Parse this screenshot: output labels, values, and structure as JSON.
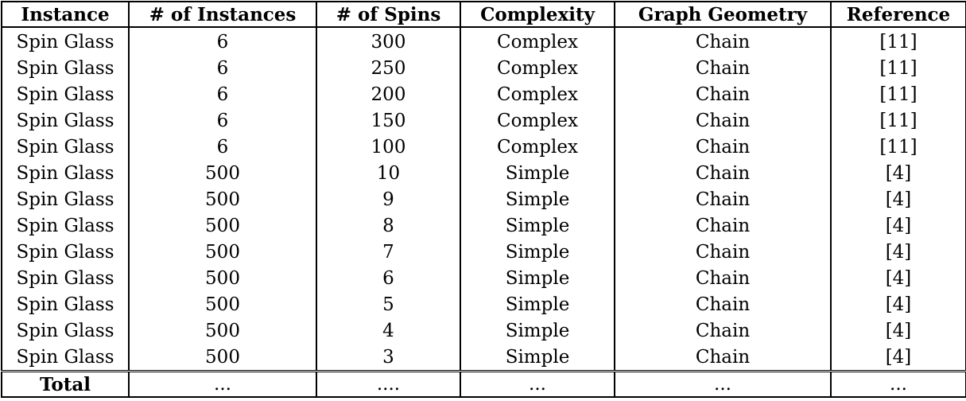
{
  "table": {
    "headers": [
      "Instance",
      "# of Instances",
      "# of Spins",
      "Complexity",
      "Graph Geometry",
      "Reference"
    ],
    "rows": [
      [
        "Spin Glass",
        "6",
        "300",
        "Complex",
        "Chain",
        "[11]"
      ],
      [
        "Spin Glass",
        "6",
        "250",
        "Complex",
        "Chain",
        "[11]"
      ],
      [
        "Spin Glass",
        "6",
        "200",
        "Complex",
        "Chain",
        "[11]"
      ],
      [
        "Spin Glass",
        "6",
        "150",
        "Complex",
        "Chain",
        "[11]"
      ],
      [
        "Spin Glass",
        "6",
        "100",
        "Complex",
        "Chain",
        "[11]"
      ],
      [
        "Spin Glass",
        "500",
        "10",
        "Simple",
        "Chain",
        "[4]"
      ],
      [
        "Spin Glass",
        "500",
        "9",
        "Simple",
        "Chain",
        "[4]"
      ],
      [
        "Spin Glass",
        "500",
        "8",
        "Simple",
        "Chain",
        "[4]"
      ],
      [
        "Spin Glass",
        "500",
        "7",
        "Simple",
        "Chain",
        "[4]"
      ],
      [
        "Spin Glass",
        "500",
        "6",
        "Simple",
        "Chain",
        "[4]"
      ],
      [
        "Spin Glass",
        "500",
        "5",
        "Simple",
        "Chain",
        "[4]"
      ],
      [
        "Spin Glass",
        "500",
        "4",
        "Simple",
        "Chain",
        "[4]"
      ],
      [
        "Spin Glass",
        "500",
        "3",
        "Simple",
        "Chain",
        "[4]"
      ]
    ],
    "total": [
      "Total",
      "...",
      "....",
      "...",
      "...",
      "..."
    ]
  }
}
